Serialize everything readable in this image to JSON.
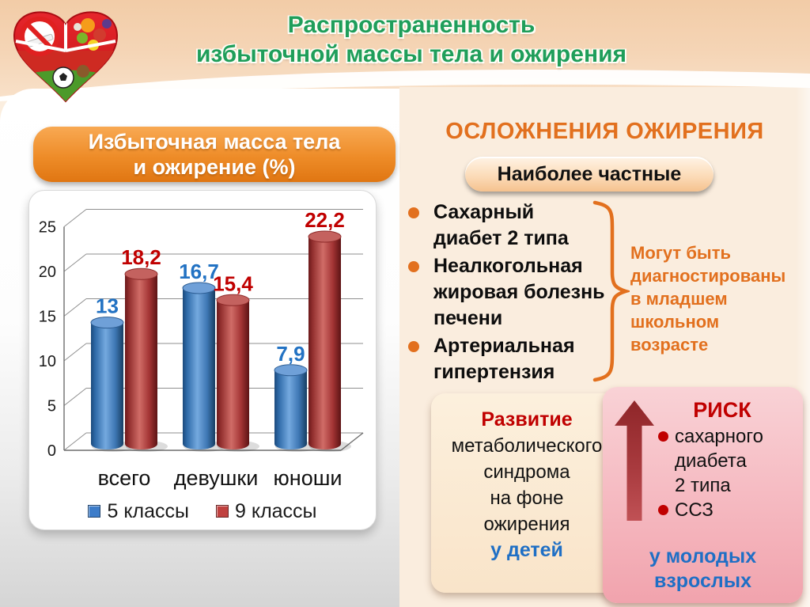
{
  "header": {
    "title_line1": "Распространенность",
    "title_line2": "избыточной массы тела и ожирения"
  },
  "banner": {
    "line1": "Избыточная масса тела",
    "line2": "и ожирение (%)"
  },
  "chart_data": {
    "type": "bar",
    "style": "3d-cylinder",
    "title": "Избыточная масса тела и ожирение (%)",
    "categories": [
      "всего",
      "девушки",
      "юноши"
    ],
    "series": [
      {
        "name": "5 классы",
        "color": "#3D7CC9",
        "values": [
          13,
          16.7,
          7.9
        ]
      },
      {
        "name": "9 классы",
        "color": "#C0413F",
        "values": [
          18.2,
          15.4,
          22.2
        ]
      }
    ],
    "ylim": [
      0,
      25
    ],
    "yticks": [
      0,
      5,
      10,
      15,
      20,
      25
    ],
    "grid": true,
    "legend_position": "bottom",
    "value_label_format": "comma-decimal",
    "value_label_colors": {
      "series0": "#2272C3",
      "series1": "#C00000"
    }
  },
  "right": {
    "title": "ОСЛОЖНЕНИЯ ОЖИРЕНИЯ",
    "badge": "Наиболее частные",
    "complications": [
      "Сахарный\nдиабет 2 типа",
      "Неалкогольная\nжировая болезнь\nпечени",
      "Артериальная\nгипертензия"
    ],
    "annotation": "Могут быть\nдиагностированы\nв младшем\nшкольном\nвозрасте",
    "development": {
      "title": "Развитие",
      "body": "метаболического\nсиндрома\nна фоне\nожирения",
      "highlight": "у детей"
    },
    "risk": {
      "title": "РИСК",
      "items": [
        "сахарного\nдиабета\n2 типа",
        "ССЗ"
      ],
      "highlight": "у молодых\nвзрослых"
    }
  },
  "logo": {
    "sections": [
      "no-smoking",
      "healthy-food",
      "sports"
    ]
  },
  "colors": {
    "title_green": "#1F9E5A",
    "accent_orange": "#E2701E",
    "banner_orange": "#EE8C28",
    "header_peach": "#F5D5B6",
    "panel_peach": "#FAEDDE",
    "red": "#C00000",
    "blue": "#1F6FC5",
    "pink_box": "#F1A3AD",
    "cream_box": "#F9E4C9"
  }
}
